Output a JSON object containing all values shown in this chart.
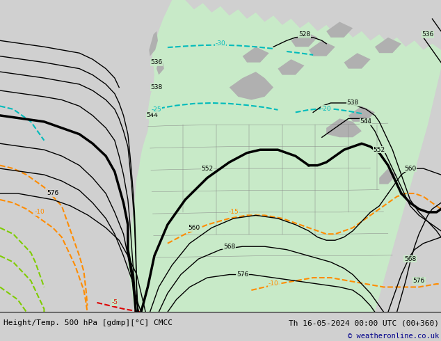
{
  "title_left": "Height/Temp. 500 hPa [gdmp][°C] CMCC",
  "title_right": "Th 16-05-2024 00:00 UTC (00+360)",
  "copyright": "© weatheronline.co.uk",
  "bg_color": "#d0d0d0",
  "land_color": "#c8eac8",
  "gray_land_color": "#b0b0b0",
  "ocean_color": "#d0d0d0",
  "figsize": [
    6.34,
    4.9
  ],
  "dpi": 100,
  "map_extent": [
    0,
    1,
    0,
    1
  ]
}
